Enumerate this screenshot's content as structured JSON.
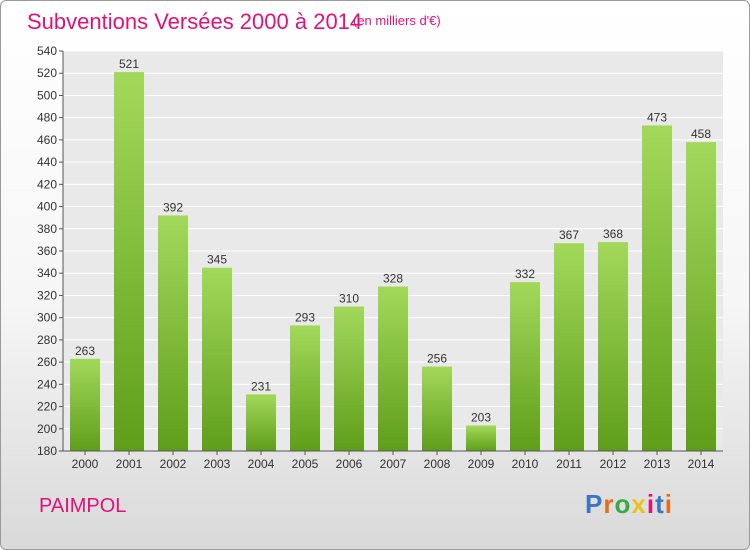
{
  "header": {
    "title": "Subventions Versées 2000 à 2014",
    "subtitle": "(en milliers d'€)"
  },
  "footer": {
    "city": "PAIMPOL",
    "logo": "Proxiti",
    "logo_colors": [
      "#3a76c4",
      "#e86b1a",
      "#3aa84a",
      "#e8c21a",
      "#e0117a",
      "#3a76c4",
      "#e86b1a"
    ]
  },
  "colors": {
    "accent": "#e0117a",
    "bar_top": "#a3d95b",
    "bar_bottom": "#5e9e1a"
  },
  "chart_data": {
    "type": "bar",
    "title": "Subventions Versées 2000 à 2014",
    "subtitle": "(en milliers d'€)",
    "categories": [
      "2000",
      "2001",
      "2002",
      "2003",
      "2004",
      "2005",
      "2006",
      "2007",
      "2008",
      "2009",
      "2010",
      "2011",
      "2012",
      "2013",
      "2014"
    ],
    "values": [
      263,
      521,
      392,
      345,
      231,
      293,
      310,
      328,
      256,
      203,
      332,
      367,
      368,
      473,
      458
    ],
    "ylim": [
      180,
      540
    ],
    "yticks": [
      180,
      200,
      220,
      240,
      260,
      280,
      300,
      320,
      340,
      360,
      380,
      400,
      420,
      440,
      460,
      480,
      500,
      520,
      540
    ],
    "grid": true,
    "data_labels": true
  }
}
